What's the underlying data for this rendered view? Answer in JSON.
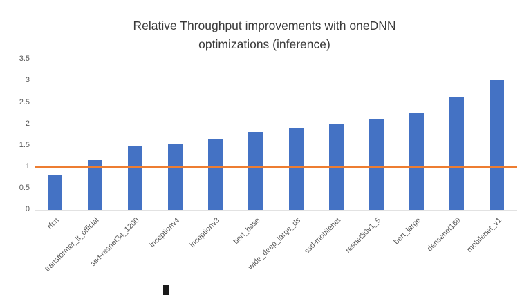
{
  "chart": {
    "title_line1": "Relative Throughput improvements with oneDNN",
    "title_line2": "optimizations (inference)"
  },
  "chart_data": {
    "type": "bar",
    "title": "Relative Throughput improvements with oneDNN optimizations (inference)",
    "categories": [
      "rfcn",
      "transformer_lt_official",
      "ssd-resnet34_1200",
      "inceptionv4",
      "inceptionv3",
      "bert_base",
      "wide_deep_large_ds",
      "ssd-mobilenet",
      "resnet50v1_5",
      "bert_large",
      "densenet169",
      "mobilenet_v1"
    ],
    "values": [
      0.8,
      1.17,
      1.48,
      1.55,
      1.65,
      1.82,
      1.9,
      2.0,
      2.1,
      2.25,
      2.62,
      3.03
    ],
    "xlabel": "",
    "ylabel": "",
    "ylim": [
      0,
      3.5
    ],
    "yticks": [
      0,
      0.5,
      1,
      1.5,
      2,
      2.5,
      3,
      3.5
    ],
    "ytick_labels": [
      "0",
      "0.5",
      "1",
      "1.5",
      "2",
      "2.5",
      "3",
      "3.5"
    ],
    "reference_line": 1,
    "bar_color": "#4472c4",
    "reference_line_color": "#ed7d31",
    "grid": false,
    "legend": "none"
  }
}
